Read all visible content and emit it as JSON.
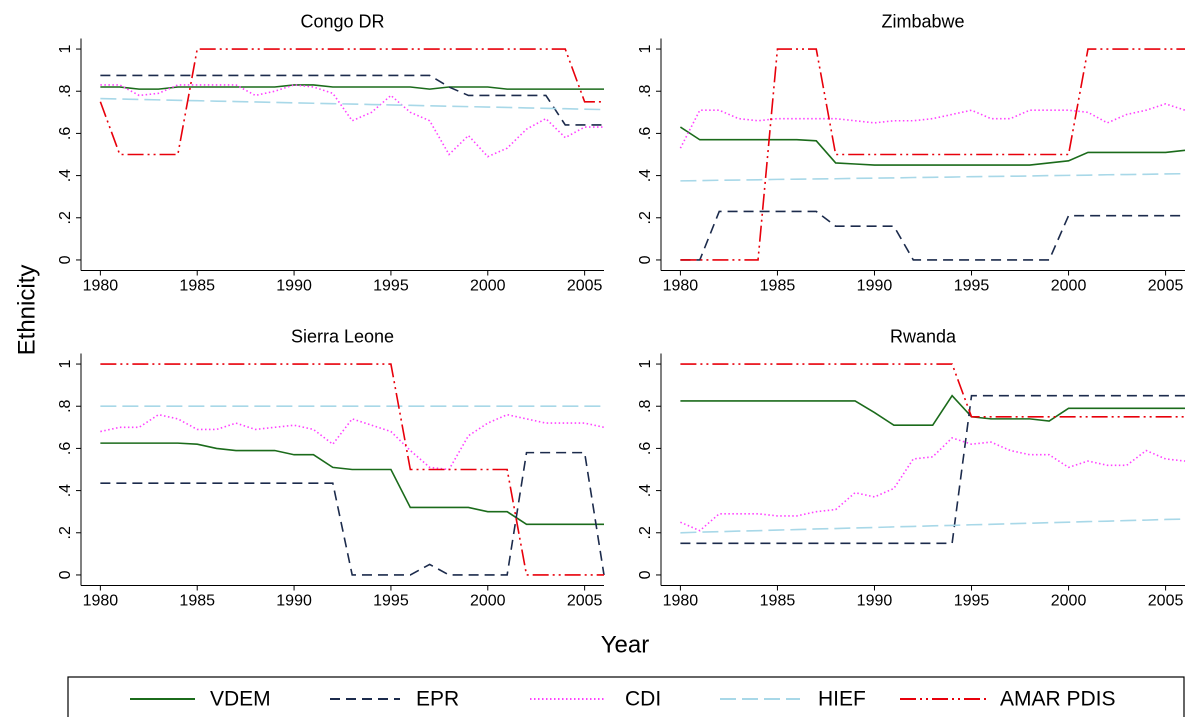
{
  "y_label": "Ethnicity",
  "x_label": "Year",
  "legend": [
    {
      "name": "VDEM",
      "color": "#1b6b1b",
      "dash": "solid"
    },
    {
      "name": "EPR",
      "color": "#1c2b4c",
      "dash": "dash"
    },
    {
      "name": "CDI",
      "color": "#ff40ff",
      "dash": "dot"
    },
    {
      "name": "HIEF",
      "color": "#a8d8e8",
      "dash": "longdash"
    },
    {
      "name": "AMAR PDIS",
      "color": "#e8000b",
      "dash": "dashdotdot"
    }
  ],
  "chart_data": [
    {
      "type": "line",
      "title": "Congo DR",
      "x": [
        1980,
        1981,
        1982,
        1983,
        1984,
        1985,
        1986,
        1987,
        1988,
        1989,
        1990,
        1991,
        1992,
        1993,
        1994,
        1995,
        1996,
        1997,
        1998,
        1999,
        2000,
        2001,
        2002,
        2003,
        2004,
        2005,
        2006
      ],
      "xlim": [
        1979,
        2006
      ],
      "ylim": [
        -0.05,
        1.05
      ],
      "xticks": [
        1980,
        1985,
        1990,
        1995,
        2000,
        2005
      ],
      "yticks": [
        0,
        {
          "value": 0.2,
          "label": ".2"
        },
        {
          "value": 0.4,
          "label": ".4"
        },
        {
          "value": 0.6,
          "label": ".6"
        },
        {
          "value": 0.8,
          "label": ".8"
        },
        1
      ],
      "series": [
        {
          "values": [
            0.82,
            0.82,
            0.81,
            0.81,
            0.82,
            0.82,
            0.82,
            0.82,
            0.82,
            0.82,
            0.83,
            0.83,
            0.82,
            0.82,
            0.82,
            0.82,
            0.82,
            0.81,
            0.82,
            0.82,
            0.82,
            0.81,
            0.81,
            0.81,
            0.81,
            0.81,
            0.81
          ]
        },
        {
          "values": [
            0.875,
            0.875,
            0.875,
            0.875,
            0.875,
            0.875,
            0.875,
            0.875,
            0.875,
            0.875,
            0.875,
            0.875,
            0.875,
            0.875,
            0.875,
            0.875,
            0.875,
            0.875,
            0.82,
            0.78,
            0.78,
            0.78,
            0.78,
            0.78,
            0.64,
            0.64,
            0.64
          ]
        },
        {
          "values": [
            0.83,
            0.83,
            0.78,
            0.79,
            0.83,
            0.83,
            0.83,
            0.83,
            0.78,
            0.8,
            0.83,
            0.82,
            0.79,
            0.66,
            0.7,
            0.78,
            0.7,
            0.66,
            0.5,
            0.59,
            0.49,
            0.53,
            0.62,
            0.67,
            0.58,
            0.63,
            0.63
          ]
        },
        {
          "values": [
            0.765,
            0.763,
            0.761,
            0.759,
            0.757,
            0.755,
            0.753,
            0.751,
            0.749,
            0.747,
            0.745,
            0.743,
            0.741,
            0.739,
            0.737,
            0.735,
            0.733,
            0.731,
            0.729,
            0.727,
            0.725,
            0.723,
            0.721,
            0.719,
            0.717,
            0.715,
            0.713
          ]
        },
        {
          "values": [
            0.75,
            0.5,
            0.5,
            0.5,
            0.5,
            1,
            1,
            1,
            1,
            1,
            1,
            1,
            1,
            1,
            1,
            1,
            1,
            1,
            1,
            1,
            1,
            1,
            1,
            1,
            1,
            0.75,
            0.75
          ]
        }
      ]
    },
    {
      "type": "line",
      "title": "Zimbabwe",
      "x": [
        1980,
        1981,
        1982,
        1983,
        1984,
        1985,
        1986,
        1987,
        1988,
        1989,
        1990,
        1991,
        1992,
        1993,
        1994,
        1995,
        1996,
        1997,
        1998,
        1999,
        2000,
        2001,
        2002,
        2003,
        2004,
        2005,
        2006
      ],
      "xlim": [
        1979,
        2006
      ],
      "ylim": [
        -0.05,
        1.05
      ],
      "xticks": [
        1980,
        1985,
        1990,
        1995,
        2000,
        2005
      ],
      "yticks": [
        0,
        {
          "value": 0.2,
          "label": ".2"
        },
        {
          "value": 0.4,
          "label": ".4"
        },
        {
          "value": 0.6,
          "label": ".6"
        },
        {
          "value": 0.8,
          "label": ".8"
        },
        1
      ],
      "series": [
        {
          "values": [
            0.63,
            0.57,
            0.57,
            0.57,
            0.57,
            0.57,
            0.57,
            0.565,
            0.46,
            0.455,
            0.45,
            0.45,
            0.45,
            0.45,
            0.45,
            0.45,
            0.45,
            0.45,
            0.45,
            0.46,
            0.47,
            0.51,
            0.51,
            0.51,
            0.51,
            0.51,
            0.52
          ]
        },
        {
          "values": [
            0,
            0,
            0.23,
            0.23,
            0.23,
            0.23,
            0.23,
            0.23,
            0.16,
            0.16,
            0.16,
            0.16,
            0,
            0,
            0,
            0,
            0,
            0,
            0,
            0,
            0.21,
            0.21,
            0.21,
            0.21,
            0.21,
            0.21,
            0.21
          ]
        },
        {
          "values": [
            0.53,
            0.71,
            0.71,
            0.67,
            0.66,
            0.67,
            0.67,
            0.67,
            0.67,
            0.66,
            0.65,
            0.66,
            0.66,
            0.67,
            0.69,
            0.71,
            0.67,
            0.67,
            0.71,
            0.71,
            0.71,
            0.7,
            0.65,
            0.69,
            0.71,
            0.74,
            0.71
          ]
        },
        {
          "values": [
            0.375,
            0.376,
            0.378,
            0.379,
            0.38,
            0.382,
            0.383,
            0.384,
            0.385,
            0.387,
            0.388,
            0.389,
            0.391,
            0.392,
            0.393,
            0.395,
            0.396,
            0.397,
            0.398,
            0.4,
            0.401,
            0.402,
            0.404,
            0.405,
            0.406,
            0.408,
            0.409
          ]
        },
        {
          "values": [
            0,
            0,
            0,
            0,
            0,
            1,
            1,
            1,
            0.5,
            0.5,
            0.5,
            0.5,
            0.5,
            0.5,
            0.5,
            0.5,
            0.5,
            0.5,
            0.5,
            0.5,
            0.5,
            1,
            1,
            1,
            1,
            1,
            1
          ]
        }
      ]
    },
    {
      "type": "line",
      "title": "Sierra Leone",
      "x": [
        1980,
        1981,
        1982,
        1983,
        1984,
        1985,
        1986,
        1987,
        1988,
        1989,
        1990,
        1991,
        1992,
        1993,
        1994,
        1995,
        1996,
        1997,
        1998,
        1999,
        2000,
        2001,
        2002,
        2003,
        2004,
        2005,
        2006
      ],
      "xlim": [
        1979,
        2006
      ],
      "ylim": [
        -0.05,
        1.05
      ],
      "xticks": [
        1980,
        1985,
        1990,
        1995,
        2000,
        2005
      ],
      "yticks": [
        0,
        {
          "value": 0.2,
          "label": ".2"
        },
        {
          "value": 0.4,
          "label": ".4"
        },
        {
          "value": 0.6,
          "label": ".6"
        },
        {
          "value": 0.8,
          "label": ".8"
        },
        1
      ],
      "series": [
        {
          "values": [
            0.625,
            0.625,
            0.625,
            0.625,
            0.625,
            0.62,
            0.6,
            0.59,
            0.59,
            0.59,
            0.57,
            0.57,
            0.51,
            0.5,
            0.5,
            0.5,
            0.32,
            0.32,
            0.32,
            0.32,
            0.3,
            0.3,
            0.24,
            0.24,
            0.24,
            0.24,
            0.24
          ]
        },
        {
          "values": [
            0.435,
            0.435,
            0.435,
            0.435,
            0.435,
            0.435,
            0.435,
            0.435,
            0.435,
            0.435,
            0.435,
            0.435,
            0.435,
            0,
            0,
            0,
            0,
            0.05,
            0,
            0,
            0,
            0,
            0.58,
            0.58,
            0.58,
            0.58,
            0
          ]
        },
        {
          "values": [
            0.68,
            0.7,
            0.7,
            0.76,
            0.74,
            0.69,
            0.69,
            0.72,
            0.69,
            0.7,
            0.71,
            0.69,
            0.62,
            0.74,
            0.71,
            0.68,
            0.59,
            0.51,
            0.5,
            0.66,
            0.72,
            0.76,
            0.74,
            0.72,
            0.72,
            0.72,
            0.7
          ]
        },
        {
          "values": [
            0.8,
            0.8,
            0.8,
            0.8,
            0.8,
            0.8,
            0.8,
            0.8,
            0.8,
            0.8,
            0.8,
            0.8,
            0.8,
            0.8,
            0.8,
            0.8,
            0.8,
            0.8,
            0.8,
            0.8,
            0.8,
            0.8,
            0.8,
            0.8,
            0.8,
            0.8,
            0.8
          ]
        },
        {
          "values": [
            1,
            1,
            1,
            1,
            1,
            1,
            1,
            1,
            1,
            1,
            1,
            1,
            1,
            1,
            1,
            1,
            0.5,
            0.5,
            0.5,
            0.5,
            0.5,
            0.5,
            0,
            0,
            0,
            0,
            0
          ]
        }
      ]
    },
    {
      "type": "line",
      "title": "Rwanda",
      "x": [
        1980,
        1981,
        1982,
        1983,
        1984,
        1985,
        1986,
        1987,
        1988,
        1989,
        1990,
        1991,
        1992,
        1993,
        1994,
        1995,
        1996,
        1997,
        1998,
        1999,
        2000,
        2001,
        2002,
        2003,
        2004,
        2005,
        2006
      ],
      "xlim": [
        1979,
        2006
      ],
      "ylim": [
        -0.05,
        1.05
      ],
      "xticks": [
        1980,
        1985,
        1990,
        1995,
        2000,
        2005
      ],
      "yticks": [
        0,
        {
          "value": 0.2,
          "label": ".2"
        },
        {
          "value": 0.4,
          "label": ".4"
        },
        {
          "value": 0.6,
          "label": ".6"
        },
        {
          "value": 0.8,
          "label": ".8"
        },
        1
      ],
      "series": [
        {
          "values": [
            0.825,
            0.825,
            0.825,
            0.825,
            0.825,
            0.825,
            0.825,
            0.825,
            0.825,
            0.825,
            0.77,
            0.71,
            0.71,
            0.71,
            0.85,
            0.75,
            0.74,
            0.74,
            0.74,
            0.73,
            0.79,
            0.79,
            0.79,
            0.79,
            0.79,
            0.79,
            0.79
          ]
        },
        {
          "values": [
            0.15,
            0.15,
            0.15,
            0.15,
            0.15,
            0.15,
            0.15,
            0.15,
            0.15,
            0.15,
            0.15,
            0.15,
            0.15,
            0.15,
            0.15,
            0.85,
            0.85,
            0.85,
            0.85,
            0.85,
            0.85,
            0.85,
            0.85,
            0.85,
            0.85,
            0.85,
            0.85
          ]
        },
        {
          "values": [
            0.25,
            0.21,
            0.29,
            0.29,
            0.29,
            0.28,
            0.28,
            0.3,
            0.31,
            0.39,
            0.37,
            0.41,
            0.55,
            0.56,
            0.65,
            0.62,
            0.63,
            0.59,
            0.57,
            0.57,
            0.51,
            0.54,
            0.52,
            0.52,
            0.59,
            0.55,
            0.54
          ]
        },
        {
          "values": [
            0.2,
            0.203,
            0.205,
            0.208,
            0.21,
            0.213,
            0.215,
            0.218,
            0.22,
            0.223,
            0.225,
            0.228,
            0.23,
            0.233,
            0.235,
            0.238,
            0.24,
            0.243,
            0.245,
            0.248,
            0.25,
            0.253,
            0.255,
            0.258,
            0.26,
            0.263,
            0.265
          ]
        },
        {
          "values": [
            1,
            1,
            1,
            1,
            1,
            1,
            1,
            1,
            1,
            1,
            1,
            1,
            1,
            1,
            1,
            0.75,
            0.75,
            0.75,
            0.75,
            0.75,
            0.75,
            0.75,
            0.75,
            0.75,
            0.75,
            0.75,
            0.75
          ]
        }
      ]
    }
  ]
}
